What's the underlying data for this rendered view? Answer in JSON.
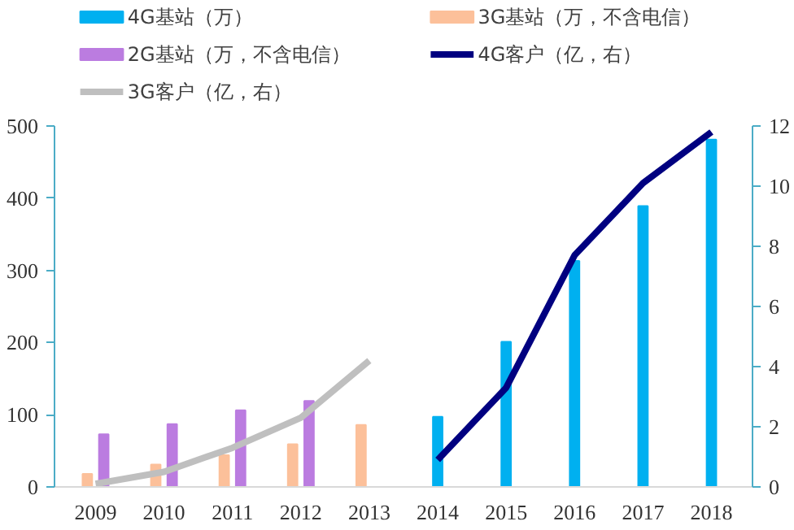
{
  "chart_data": {
    "type": "bar",
    "categories": [
      "2009",
      "2010",
      "2011",
      "2012",
      "2013",
      "2014",
      "2015",
      "2016",
      "2017",
      "2018"
    ],
    "series": [
      {
        "name": "4G基站（万）",
        "color": "#00b0f0",
        "values": [
          null,
          null,
          null,
          null,
          null,
          97,
          201,
          313,
          389,
          481
        ]
      },
      {
        "name": "3G基站（万，不含电信）",
        "color": "#fcc09a",
        "values": [
          18,
          31,
          44,
          59,
          86,
          null,
          null,
          null,
          null,
          null
        ]
      },
      {
        "name": "2G基站（万，不含电信）",
        "color": "#bb7ce0",
        "values": [
          73,
          87,
          106,
          119,
          null,
          null,
          null,
          null,
          null,
          null
        ]
      },
      {
        "name": "4G客户（亿，右）",
        "type": "line",
        "axis": "y2",
        "color": "#000080",
        "values": [
          null,
          null,
          null,
          null,
          null,
          0.9,
          3.3,
          7.7,
          10.1,
          11.8
        ]
      },
      {
        "name": "3G客户（亿，右）",
        "type": "line",
        "axis": "y2",
        "color": "#bfbfbf",
        "values": [
          0.1,
          0.5,
          1.3,
          2.3,
          4.2,
          null,
          null,
          null,
          null,
          null
        ]
      }
    ],
    "ylim": [
      0,
      500
    ],
    "yticks": [
      0,
      100,
      200,
      300,
      400,
      500
    ],
    "y2lim": [
      0,
      12
    ],
    "y2ticks": [
      0,
      2,
      4,
      6,
      8,
      10,
      12
    ],
    "grid": false,
    "legend": "top",
    "line_style": "solid",
    "marker": "none"
  }
}
